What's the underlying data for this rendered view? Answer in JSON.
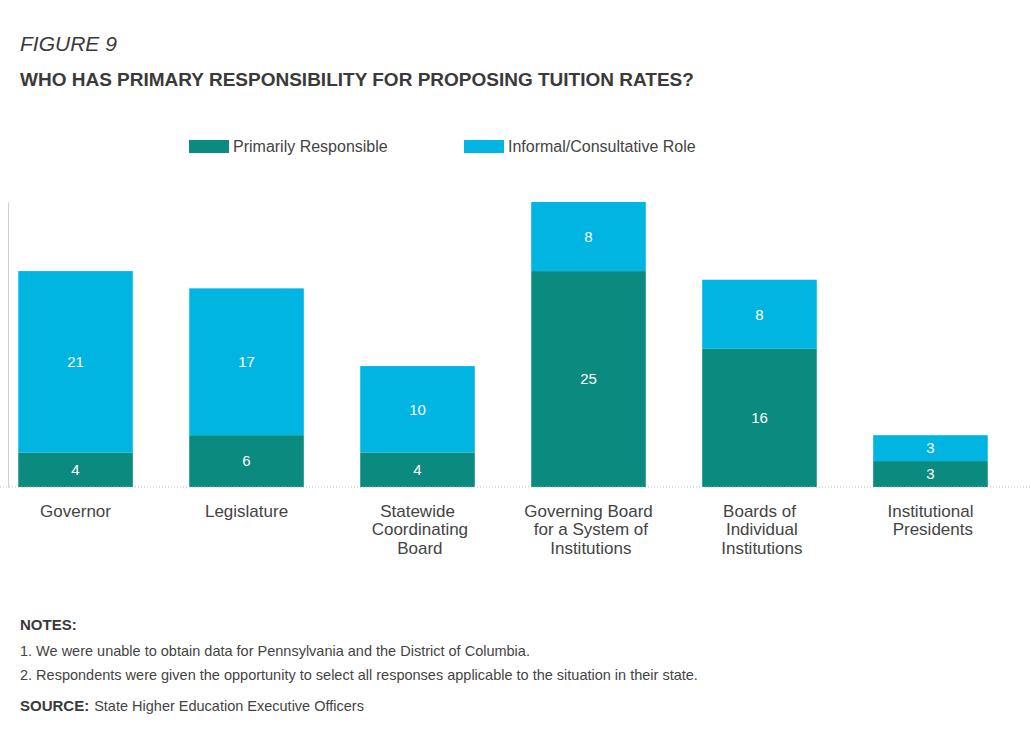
{
  "chart_data": {
    "type": "bar",
    "figure_label": "FIGURE 9",
    "title": "WHO HAS PRIMARY RESPONSIBILITY FOR PROPOSING TUITION RATES?",
    "categories": [
      "Governor",
      "Legislature",
      "Statewide Coordinating Board",
      "Governing Board for a System of Institutions",
      "Boards of Individual Institutions",
      "Institutional Presidents"
    ],
    "series": [
      {
        "name": "Primarily Responsible",
        "color": "#0b8a80",
        "values": [
          4,
          6,
          4,
          25,
          16,
          3
        ]
      },
      {
        "name": "Informal/Consultative Role",
        "color": "#00b5e2",
        "values": [
          21,
          17,
          10,
          8,
          8,
          3
        ]
      }
    ],
    "stacked": true,
    "data_labels": true,
    "tick_labels": "x",
    "grid": true,
    "legend": "top",
    "ylim": [
      0,
      33
    ],
    "yticks": [
      0
    ],
    "notes_heading": "NOTES:",
    "notes": [
      "1. We were unable to obtain data for Pennsylvania and the District of Columbia.",
      "2. Respondents were given the opportunity to select all responses applicable to the situation in their state."
    ],
    "source_label": "SOURCE:",
    "source": "State Higher Education Executive Officers"
  }
}
